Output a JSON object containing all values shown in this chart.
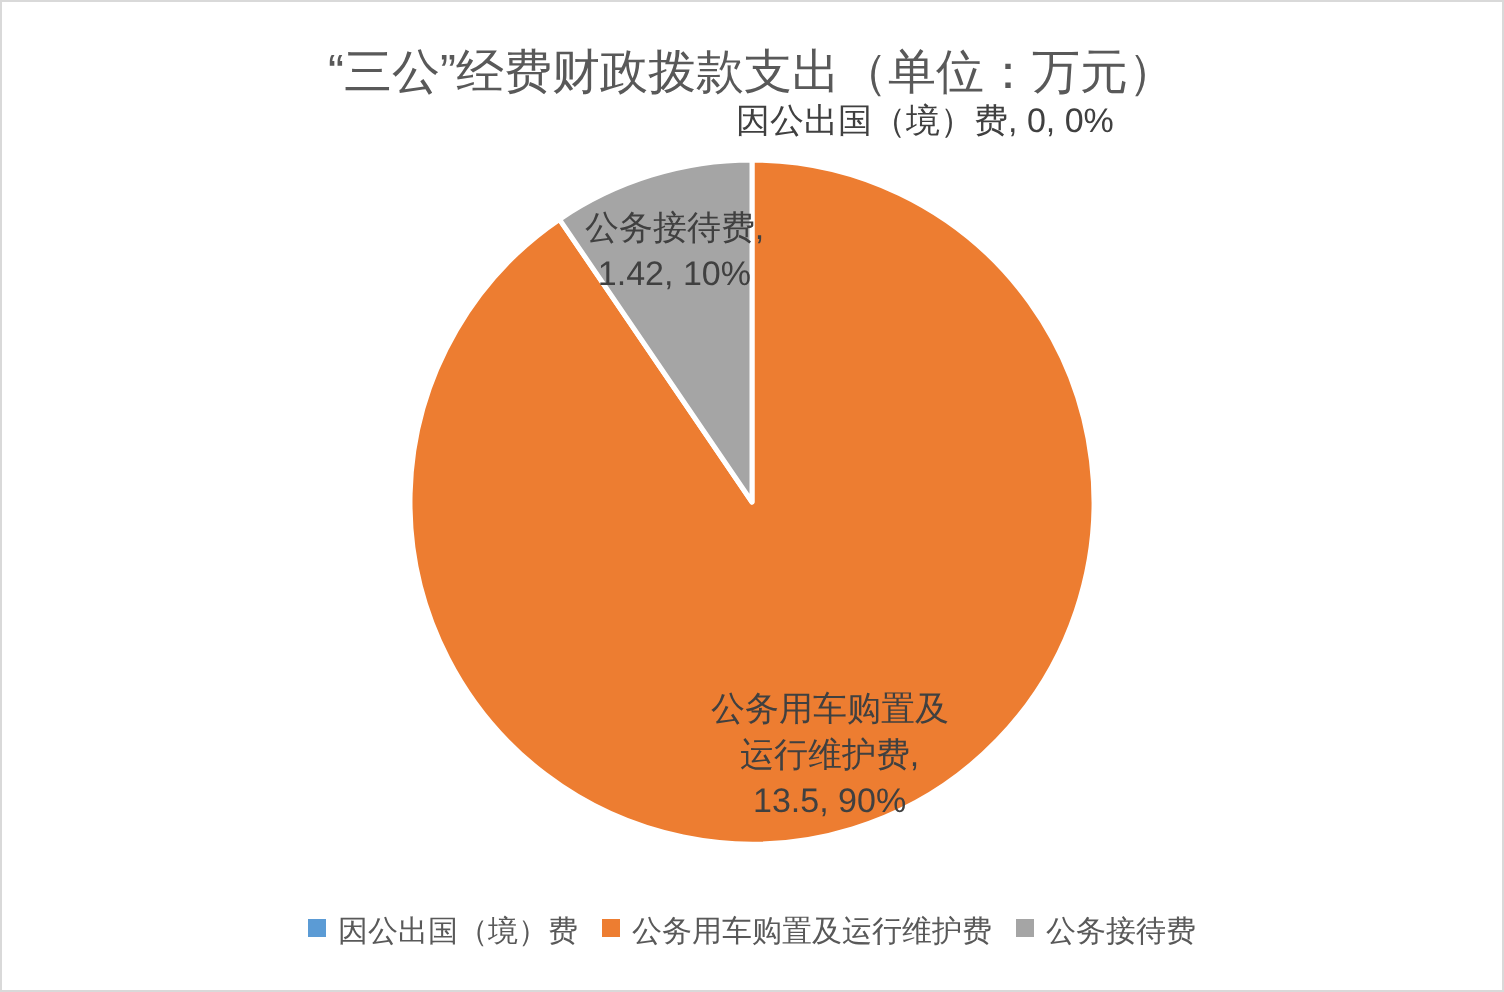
{
  "chart_data": {
    "type": "pie",
    "title": "“三公”经费财政拨款支出（单位：万元）",
    "categories": [
      "因公出国（境）费",
      "公务用车购置及运行维护费",
      "公务接待费"
    ],
    "values": [
      0,
      13.5,
      1.42
    ],
    "colors": [
      "#5b9bd5",
      "#ed7d31",
      "#a5a5a5"
    ],
    "value_labels": [
      "因公出国（境）费, 0, 0%",
      "公务用车购置及运行维护费, 13.5, 90%",
      "公务接待费, 1.42, 10%"
    ],
    "legend": "bottom"
  }
}
